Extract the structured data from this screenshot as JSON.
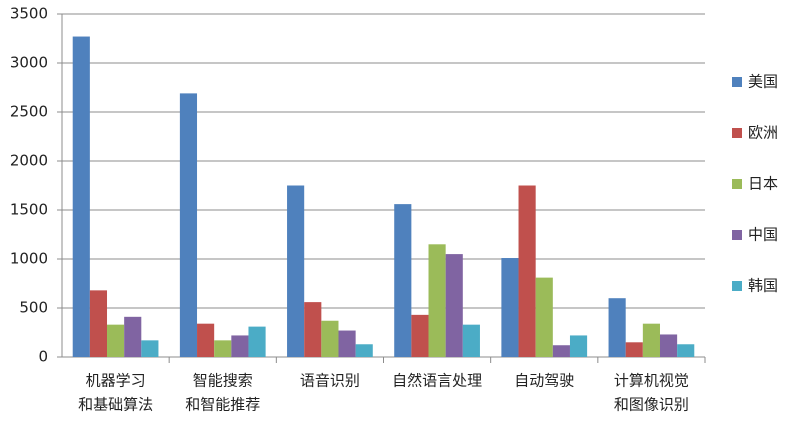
{
  "chart_data": {
    "type": "bar",
    "categories": [
      [
        "机器学习",
        "和基础算法"
      ],
      [
        "智能搜索",
        "和智能推荐"
      ],
      [
        "语音识别"
      ],
      [
        "自然语言处理"
      ],
      [
        "自动驾驶"
      ],
      [
        "计算机视觉",
        "和图像识别"
      ]
    ],
    "series": [
      {
        "name": "美国",
        "color": "#4f81bd",
        "values": [
          3270,
          2690,
          1750,
          1560,
          1010,
          600
        ]
      },
      {
        "name": "欧洲",
        "color": "#c0504d",
        "values": [
          680,
          340,
          560,
          430,
          1750,
          150
        ]
      },
      {
        "name": "日本",
        "color": "#9bbb59",
        "values": [
          330,
          170,
          370,
          1150,
          810,
          340
        ]
      },
      {
        "name": "中国",
        "color": "#8064a2",
        "values": [
          410,
          220,
          270,
          1050,
          120,
          230
        ]
      },
      {
        "name": "韩国",
        "color": "#4bacc6",
        "values": [
          170,
          310,
          130,
          330,
          220,
          130
        ]
      }
    ],
    "ylim": [
      0,
      3500
    ],
    "yticks": [
      0,
      500,
      1000,
      1500,
      2000,
      2500,
      3000,
      3500
    ],
    "grid": true,
    "legend": "right"
  }
}
